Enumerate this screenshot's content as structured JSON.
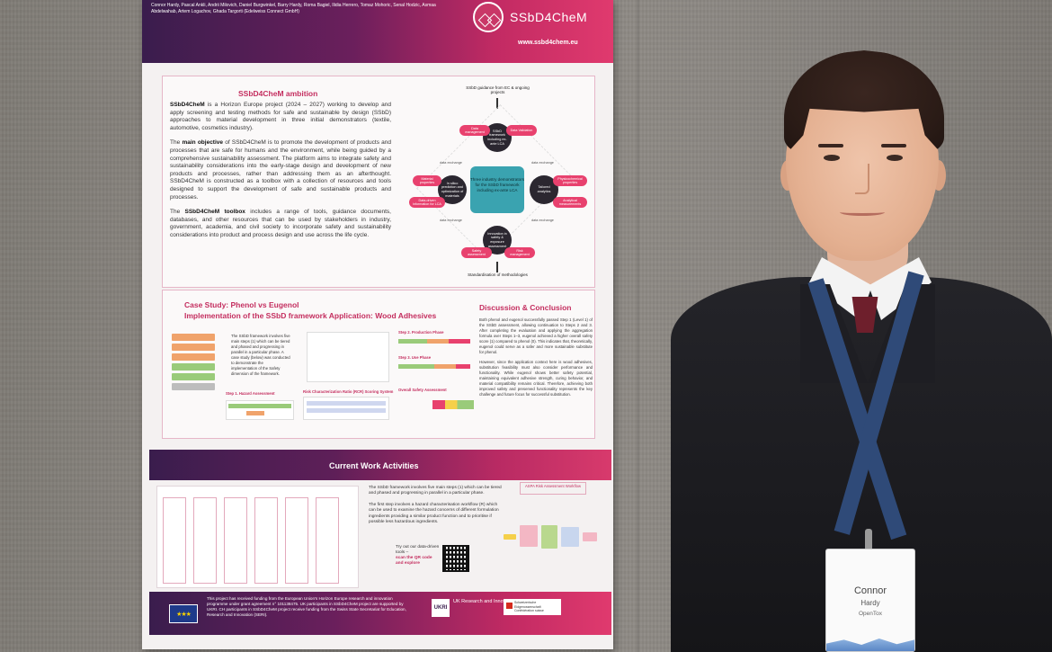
{
  "poster": {
    "authors": "Connor Hardy, Pascal Ankli, Andrii Milovich, Daniel Burgwinkel, Barry Hardy, Roma Bagiel, Ilidia Herrero, Tomaz Mohoric, Senal Hodzic, Asmaa Abdelwahab, Artem Logachov, Ghada Targorti (Edelweiss Connect GmbH)",
    "logo_text": "SSbD4CheM",
    "url": "www.ssbd4chem.eu",
    "ambition": {
      "title": "SSbD4CheM ambition",
      "p1_strong": "SSbD4CheM",
      "p1": " is a Horizon Europe project (2024 – 2027) working to develop and apply screening and testing methods for safe and sustainable by design (SSbD) approaches to material development in three initial demonstrators (textile, automotive, cosmetics industry).",
      "p2_prefix": "The ",
      "p2_strong": "main objective",
      "p2": " of SSbD4CheM is to promote the development of products and processes that are safe for humans and the environment, while being guided by a comprehensive sustainability assessment. The platform aims to integrate safety and sustainability considerations into the early-stage design and development of new products and processes, rather than addressing them as an afterthought. SSbD4CheM is constructed as a toolbox with a collection of resources and tools designed to support the development of safe and sustainable products and processes.",
      "p3_prefix": "The ",
      "p3_strong": "SSbD4CheM toolbox",
      "p3": " includes a range of tools, guidance documents, databases, and other resources that can be used by stakeholders in industry, government, academia, and civil society to incorporate safety and sustainability considerations into product and process design and use across the life cycle."
    },
    "diagram": {
      "top_label": "SSbD guidance from EC & ongoing projects",
      "bottom_label": "Standardisation of methodologies",
      "center": "Three industry demonstrators for the SSbD framework including ex-ante LCA",
      "node_top": "SSbD framework including ex-ante LCA",
      "node_left": "In silico prediction and optimization of materials",
      "node_right": "Tailored analytics",
      "node_bottom": "Innovation in safety & exposure assessment",
      "pill_1": "Data management",
      "pill_2": "Data Validation",
      "pill_3": "Material properties",
      "pill_4": "Data-driven information for LCA",
      "pill_5": "Physicochemical properties",
      "pill_6": "Analytical measurements",
      "pill_7": "Safety assessment",
      "pill_8": "Risk management",
      "exchange": "data exchange"
    },
    "case": {
      "title_1": "Case Study: Phenol vs Eugenol",
      "title_2": "Implementation of the SSbD framework Application: Wood Adhesives",
      "intro": "The SSbD framework involves five main steps (1) which can be tiered and phased and progressing in parallel in a particular phase. A case study (below) was conducted to demonstrate the implementation of the Safety dimension of the framework.",
      "cap_step1": "Step 1. Hazard Assessment",
      "cap_step2": "Step 2. Production Phase",
      "cap_step3": "Step 3. Use Phase",
      "cap_risk": "Risk Characterization Ratio (RCR) Scoring System",
      "cap_overall": "Overall Safety Assessment"
    },
    "discussion": {
      "title": "Discussion & Conclusion",
      "p1": "Both phenol and eugenol successfully passed Step 1 (Level 1) of the SSbD assessment, allowing continuation to Steps 2 and 3. After completing the evaluation and applying the aggregation formula over Steps 1–3, eugenol achieved a higher overall safety score (1) compared to phenol (0). This indicates that, theoretically, eugenol could serve as a safer and more sustainable substitute for phenol.",
      "p2": "However, since the application context here is wood adhesives, substitution feasibility must also consider performance and functionality. While eugenol shows better safety potential, maintaining equivalent adhesive strength, curing behavior, and material compatibility remains critical. Therefore, achieving both improved safety and preserved functionality represents the key challenge and future focus for successful substitution."
    },
    "current_work": {
      "title": "Current Work Activities",
      "p1": "The SSbD framework involves five main steps (1) which can be tiered and phased and progressing in parallel in a particular phase.",
      "p2": "The first step involves a hazard characterisation workflow (R) which can be used to examine the hazard concerns of different formulation ingredients providing a similar product function and to prioritise if possible less hazardous ingredients.",
      "qr_prompt": "Try out our data-driven tools –",
      "qr_link": "scan the QR code and explore",
      "aspa_title": "ASPA Risk Assessment Workflow"
    },
    "footer": {
      "eu_stars": "★★★",
      "funding": "This project has received funding from the European Union's Horizon Europe research and innovation programme under grant agreement n° 101138475. UK participants in SSbD4CheM project are supported by UKRI. CH participants in SSbD4CheM project receive funding from the Swiss State Secretariat for Education, Research and Innovation (SERI).",
      "ukri_mark": "UKRI",
      "ukri_text": "UK Research and Innovation",
      "swiss_text": "Schweizerische Eidgenossenschaft Confédération suisse"
    }
  },
  "badge": {
    "first_name": "Connor",
    "last_name": "Hardy",
    "org": "OpenTox"
  },
  "colors": {
    "accent": "#c42e5f",
    "header_dark": "#3a1d4d",
    "header_pink": "#e03a6e",
    "teal": "#3aa3b0",
    "lanyard": "#2f4a78"
  }
}
